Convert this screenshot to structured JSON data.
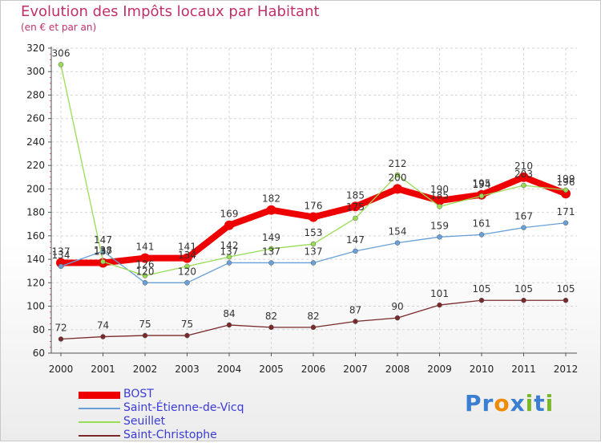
{
  "chart_data": {
    "type": "line",
    "title": "Evolution des Impôts locaux par Habitant",
    "subtitle": "(en € et par an)",
    "x": [
      "2000",
      "2001",
      "2002",
      "2003",
      "2004",
      "2005",
      "2006",
      "2007",
      "2008",
      "2009",
      "2010",
      "2011",
      "2012"
    ],
    "ylim": [
      60,
      320
    ],
    "yticks": [
      60,
      80,
      100,
      120,
      140,
      160,
      180,
      200,
      220,
      240,
      260,
      280,
      300,
      320
    ],
    "series": [
      {
        "name": "BOST",
        "color": "#ee0000",
        "values": [
          137,
          137,
          141,
          141,
          169,
          182,
          176,
          185,
          200,
          190,
          195,
          210,
          196
        ]
      },
      {
        "name": "Saint-Étienne-de-Vicq",
        "color": "#6aa0d8",
        "values": [
          134,
          147,
          120,
          120,
          137,
          137,
          137,
          147,
          154,
          159,
          161,
          167,
          171
        ]
      },
      {
        "name": "Seuillet",
        "color": "#99dd55",
        "values": [
          306,
          138,
          126,
          134,
          142,
          149,
          153,
          175,
          212,
          185,
          194,
          203,
          199
        ]
      },
      {
        "name": "Saint-Christophe",
        "color": "#7a2a2a",
        "values": [
          72,
          74,
          75,
          75,
          84,
          82,
          82,
          87,
          90,
          101,
          105,
          105,
          105
        ]
      }
    ],
    "legend_position": "bottom-left"
  },
  "brand": {
    "name": "Proxiti",
    "letters": [
      "P",
      "r",
      "o",
      "x",
      "i",
      "t",
      "i"
    ],
    "colors": [
      "#3a7fd0",
      "#3a7fd0",
      "#f08a00",
      "#3a7fd0",
      "#7ab82a",
      "#3a7fd0",
      "#7ab82a"
    ]
  }
}
